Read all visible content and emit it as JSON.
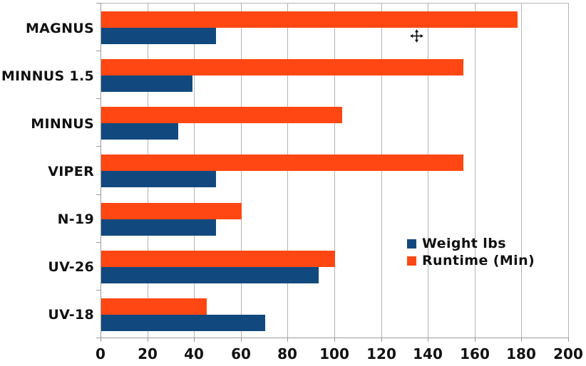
{
  "chart_data": {
    "type": "bar",
    "orientation": "horizontal",
    "title": "",
    "xlabel": "",
    "ylabel": "",
    "categories": [
      "MAGNUS",
      "MINNUS 1.5",
      "MINNUS",
      "VIPER",
      "N-19",
      "UV-26",
      "UV-18"
    ],
    "series": [
      {
        "name": "Weight lbs",
        "color": "#11497E",
        "values": [
          49,
          39,
          33,
          49,
          49,
          93,
          70
        ]
      },
      {
        "name": "Runtime (Min)",
        "color": "#FF4713",
        "values": [
          178,
          155,
          103,
          155,
          60,
          100,
          45
        ]
      }
    ],
    "xlim": [
      0,
      200
    ],
    "x_tick_labels": [
      "0",
      "20",
      "40",
      "60",
      "80",
      "100",
      "120",
      "140",
      "160",
      "180",
      "200"
    ],
    "grid": true,
    "legend_position": "middle-right",
    "colors": {
      "gridline": "#b4b4b4",
      "axis": "#9a9a9a",
      "background": "#ffffff",
      "text": "#111111"
    }
  },
  "icons": {
    "move_cursor": "four-direction-move-pointer"
  }
}
